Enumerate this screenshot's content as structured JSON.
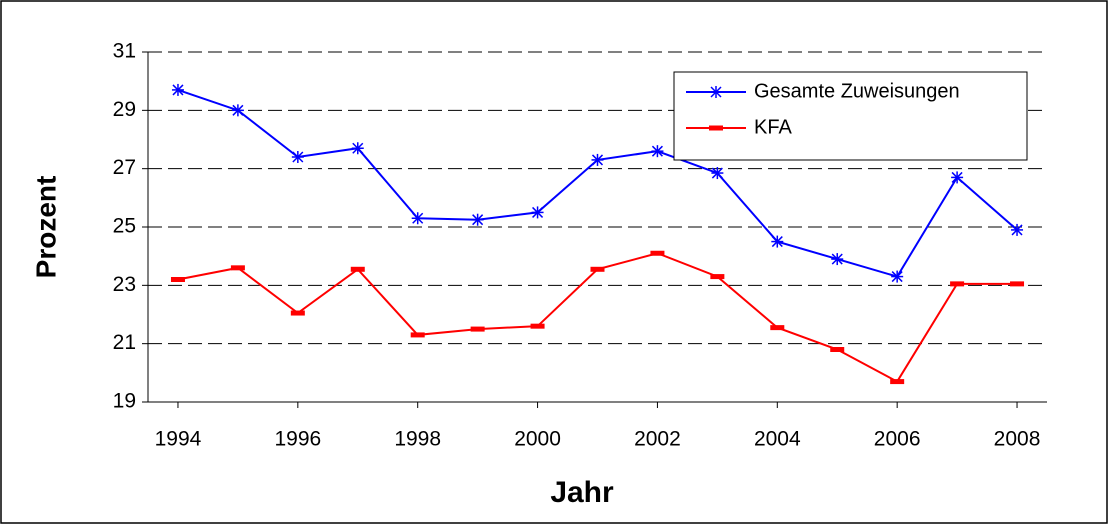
{
  "chart_data": {
    "type": "line",
    "x_label": "Jahr",
    "y_label": "Prozent",
    "x": [
      1994,
      1995,
      1996,
      1997,
      1998,
      1999,
      2000,
      2001,
      2002,
      2003,
      2004,
      2005,
      2006,
      2007,
      2008
    ],
    "xlim": [
      1993.5,
      2008.5
    ],
    "xticks": [
      1994,
      1996,
      1998,
      2000,
      2002,
      2004,
      2006,
      2008
    ],
    "ylim": [
      19,
      31
    ],
    "yticks": [
      19,
      21,
      23,
      25,
      27,
      29,
      31
    ],
    "grid": true,
    "legend": "top-right",
    "series": [
      {
        "name": "Gesamte Zuweisungen",
        "color": "#0000ff",
        "marker": "asterisk",
        "values": [
          29.7,
          29.0,
          27.4,
          27.7,
          25.3,
          25.25,
          25.5,
          27.3,
          27.6,
          26.85,
          24.5,
          23.9,
          23.3,
          26.7,
          24.9
        ]
      },
      {
        "name": "KFA",
        "color": "#ff0000",
        "marker": "dash",
        "values": [
          23.2,
          23.6,
          22.05,
          23.55,
          21.3,
          21.5,
          21.6,
          23.55,
          24.1,
          23.3,
          21.55,
          20.8,
          19.7,
          23.05,
          23.05
        ]
      }
    ]
  }
}
